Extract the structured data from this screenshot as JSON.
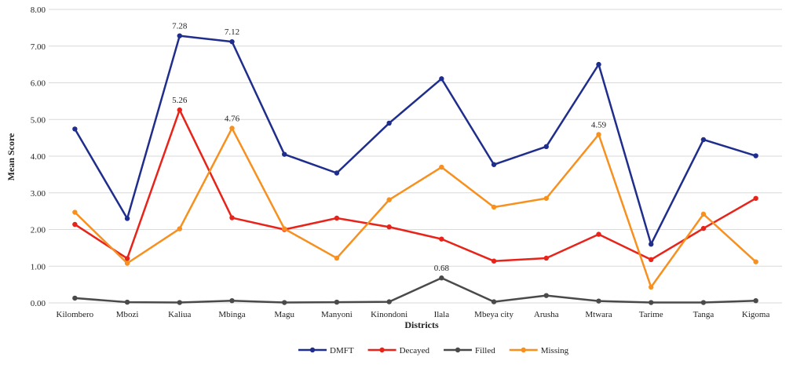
{
  "chart_data": {
    "type": "line",
    "xlabel": "Districts",
    "ylabel": "Mean Score",
    "ylim": [
      0,
      8
    ],
    "y_ticks": [
      "0.00",
      "1.00",
      "2.00",
      "3.00",
      "4.00",
      "5.00",
      "6.00",
      "7.00",
      "8.00"
    ],
    "grid": true,
    "legend_position": "bottom",
    "categories": [
      "Kilombero",
      "Mbozi",
      "Kaliua",
      "Mbinga",
      "Magu",
      "Manyoni",
      "Kinondoni",
      "Ilala",
      "Mbeya city",
      "Arusha",
      "Mtwara",
      "Tarime",
      "Tanga",
      "Kigoma"
    ],
    "series": [
      {
        "name": "DMFT",
        "color": "#1f2d8c",
        "values": [
          4.74,
          2.3,
          7.28,
          7.12,
          4.05,
          3.54,
          4.9,
          6.11,
          3.77,
          4.26,
          6.5,
          1.6,
          4.45,
          4.01
        ]
      },
      {
        "name": "Decayed",
        "color": "#e8231a",
        "values": [
          2.14,
          1.21,
          5.26,
          2.32,
          2.0,
          2.31,
          2.07,
          1.74,
          1.14,
          1.22,
          1.87,
          1.18,
          2.03,
          2.85
        ]
      },
      {
        "name": "Filled",
        "color": "#4a4a4a",
        "values": [
          0.13,
          0.02,
          0.01,
          0.06,
          0.01,
          0.02,
          0.03,
          0.68,
          0.03,
          0.2,
          0.05,
          0.01,
          0.01,
          0.06
        ]
      },
      {
        "name": "Missing",
        "color": "#f7901e",
        "values": [
          2.47,
          1.08,
          2.02,
          4.76,
          2.02,
          1.22,
          2.81,
          3.7,
          2.61,
          2.85,
          4.59,
          0.43,
          2.42,
          1.12
        ]
      }
    ],
    "annotations": [
      {
        "series": 0,
        "index": 2,
        "text": "7.28"
      },
      {
        "series": 0,
        "index": 3,
        "text": "7.12"
      },
      {
        "series": 1,
        "index": 2,
        "text": "5.26"
      },
      {
        "series": 3,
        "index": 3,
        "text": "4.76"
      },
      {
        "series": 3,
        "index": 10,
        "text": "4.59"
      },
      {
        "series": 2,
        "index": 7,
        "text": "0.68"
      }
    ]
  }
}
